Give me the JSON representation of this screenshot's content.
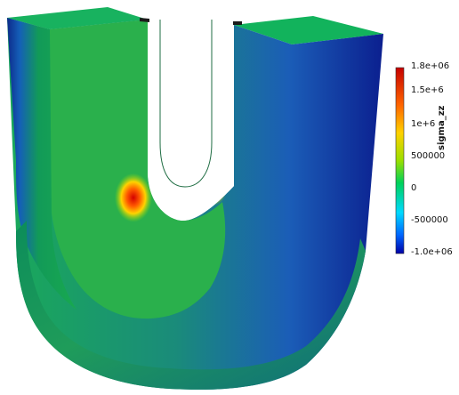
{
  "viewport": {
    "background": "#ffffff",
    "object": "u-shaped-solid",
    "colormap": [
      "#0000a6",
      "#0066ff",
      "#00d9ff",
      "#00d15a",
      "#9adf00",
      "#ffd100",
      "#ff6400",
      "#c50000"
    ]
  },
  "legend": {
    "title": "sigma_zz",
    "ticks": [
      {
        "label": "1.8e+06",
        "value": 1800000
      },
      {
        "label": "1.5e+6",
        "value": 1500000
      },
      {
        "label": "1e+6",
        "value": 1000000
      },
      {
        "label": "500000",
        "value": 500000
      },
      {
        "label": "0",
        "value": 0
      },
      {
        "label": "-500000",
        "value": -500000
      },
      {
        "label": "-1.0e+06",
        "value": -1000000
      }
    ],
    "range": [
      -1000000,
      1800000
    ]
  }
}
